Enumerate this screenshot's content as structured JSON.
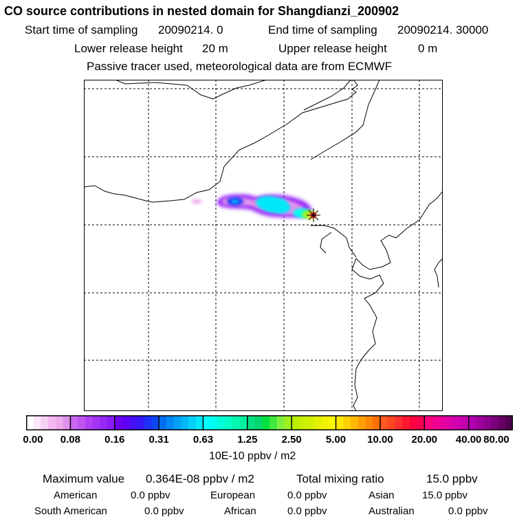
{
  "header": {
    "title": "CO  source contributions in nested domain for Shangdianzi_200902",
    "start_label": "Start time of sampling",
    "start_value": "20090214.    0",
    "end_label": "End time of sampling",
    "end_value": "20090214. 30000",
    "lower_label": "Lower release height",
    "lower_value": "20 m",
    "upper_label": "Upper release height",
    "upper_value": "0 m",
    "tracer_note": "Passive tracer used, meteorological data are from ECMWF"
  },
  "chart_data": {
    "type": "heatmap",
    "title": "CO  source contributions in nested domain for Shangdianzi_200902",
    "description_units": "10E-10 ppbv / m2",
    "colorbar": {
      "tick_labels": [
        "0.00",
        "0.08",
        "0.16",
        "0.31",
        "0.63",
        "1.25",
        "2.50",
        "5.00",
        "10.00",
        "20.00",
        "40.00",
        "80.00"
      ],
      "tick_values": [
        0.0,
        0.08,
        0.16,
        0.31,
        0.63,
        1.25,
        2.5,
        5.0,
        10.0,
        20.0,
        40.0,
        80.0
      ],
      "units_label": "10E-10 ppbv / m2",
      "segment_colors": [
        [
          "#ffffff",
          "#fce7fb",
          "#f8d0f6",
          "#f2b6f0",
          "#ecaaec",
          "#e093ec"
        ],
        [
          "#c866f0",
          "#bf55f0",
          "#b040f4",
          "#a235f4",
          "#9628f8",
          "#8a1cf8"
        ],
        [
          "#7000f0",
          "#6000f8",
          "#4810f8",
          "#3418f8",
          "#2030f8",
          "#1048f8"
        ],
        [
          "#0070f0",
          "#0088f8",
          "#00a0f8",
          "#00b8f8",
          "#00d0f8",
          "#00e8f8"
        ],
        [
          "#00ffff",
          "#00ffee",
          "#00ffd8",
          "#00ffc4",
          "#00f8b0",
          "#00f0a0"
        ],
        [
          "#00e080",
          "#00d870",
          "#00e040",
          "#40e840",
          "#80f040",
          "#a0f020"
        ],
        [
          "#b8f000",
          "#c8f000",
          "#d0f000",
          "#e0f000",
          "#f0f000",
          "#f8f800"
        ],
        [
          "#ffe800",
          "#ffd000",
          "#ffb800",
          "#ffa000",
          "#ff8800",
          "#ff7000"
        ],
        [
          "#ff5820",
          "#ff4820",
          "#ff3030",
          "#ff1830",
          "#ff0040",
          "#f80050"
        ],
        [
          "#ff0080",
          "#f40090",
          "#e800a0",
          "#dc00a8",
          "#d000b0",
          "#c400b0"
        ],
        [
          "#b000b0",
          "#a000a0",
          "#900090",
          "#7c007c",
          "#680068",
          "#500050"
        ]
      ]
    },
    "plume": [
      {
        "cells": "west-fragment",
        "level": "0.08-0.16"
      },
      {
        "cells": "mid-plume",
        "level": "0.16-1.25"
      },
      {
        "cells": "core",
        "level": "0.63-2.50"
      },
      {
        "cells": "receptor",
        "level": "2.50-20.00"
      }
    ],
    "receptor_marker": "star",
    "map_grid": "dashed"
  },
  "summary": {
    "max_label": "Maximum value",
    "max_value": "0.364E-08 ppbv / m2",
    "total_label": "Total mixing ratio",
    "total_value": "15.0 ppbv",
    "regions": [
      {
        "name": "American",
        "value": "0.0 ppbv"
      },
      {
        "name": "European",
        "value": "0.0 ppbv"
      },
      {
        "name": "Asian",
        "value": "15.0 ppbv"
      },
      {
        "name": "South American",
        "value": "0.0 ppbv"
      },
      {
        "name": "African",
        "value": "0.0 ppbv"
      },
      {
        "name": "Australian",
        "value": "0.0 ppbv"
      }
    ]
  }
}
